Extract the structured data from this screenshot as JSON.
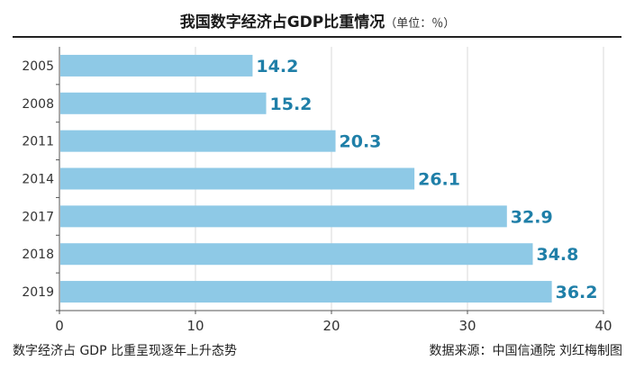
{
  "header": {
    "title": "我国数字经济占GDP比重情况",
    "unit": "（单位：％）"
  },
  "footer": {
    "caption": "数字经济占 GDP 比重呈现逐年上升态势",
    "source": "数据来源：中国信通院  刘红梅制图"
  },
  "colors": {
    "bar": "#8ec9e6",
    "value_label": "#1f7fa8",
    "grid": "#d9d9d9",
    "axis": "#555555"
  },
  "chart_data": {
    "type": "bar",
    "orientation": "horizontal",
    "title": "我国数字经济占GDP比重情况",
    "categories": [
      "2005",
      "2008",
      "2011",
      "2014",
      "2017",
      "2018",
      "2019"
    ],
    "values": [
      14.2,
      15.2,
      20.3,
      26.1,
      32.9,
      34.8,
      36.2
    ],
    "value_labels": [
      "14.2",
      "15.2",
      "20.3",
      "26.1",
      "32.9",
      "34.8",
      "36.2"
    ],
    "xlim": [
      0,
      40
    ],
    "xticks": [
      "0",
      "10",
      "20",
      "30",
      "40"
    ],
    "grid": true
  }
}
